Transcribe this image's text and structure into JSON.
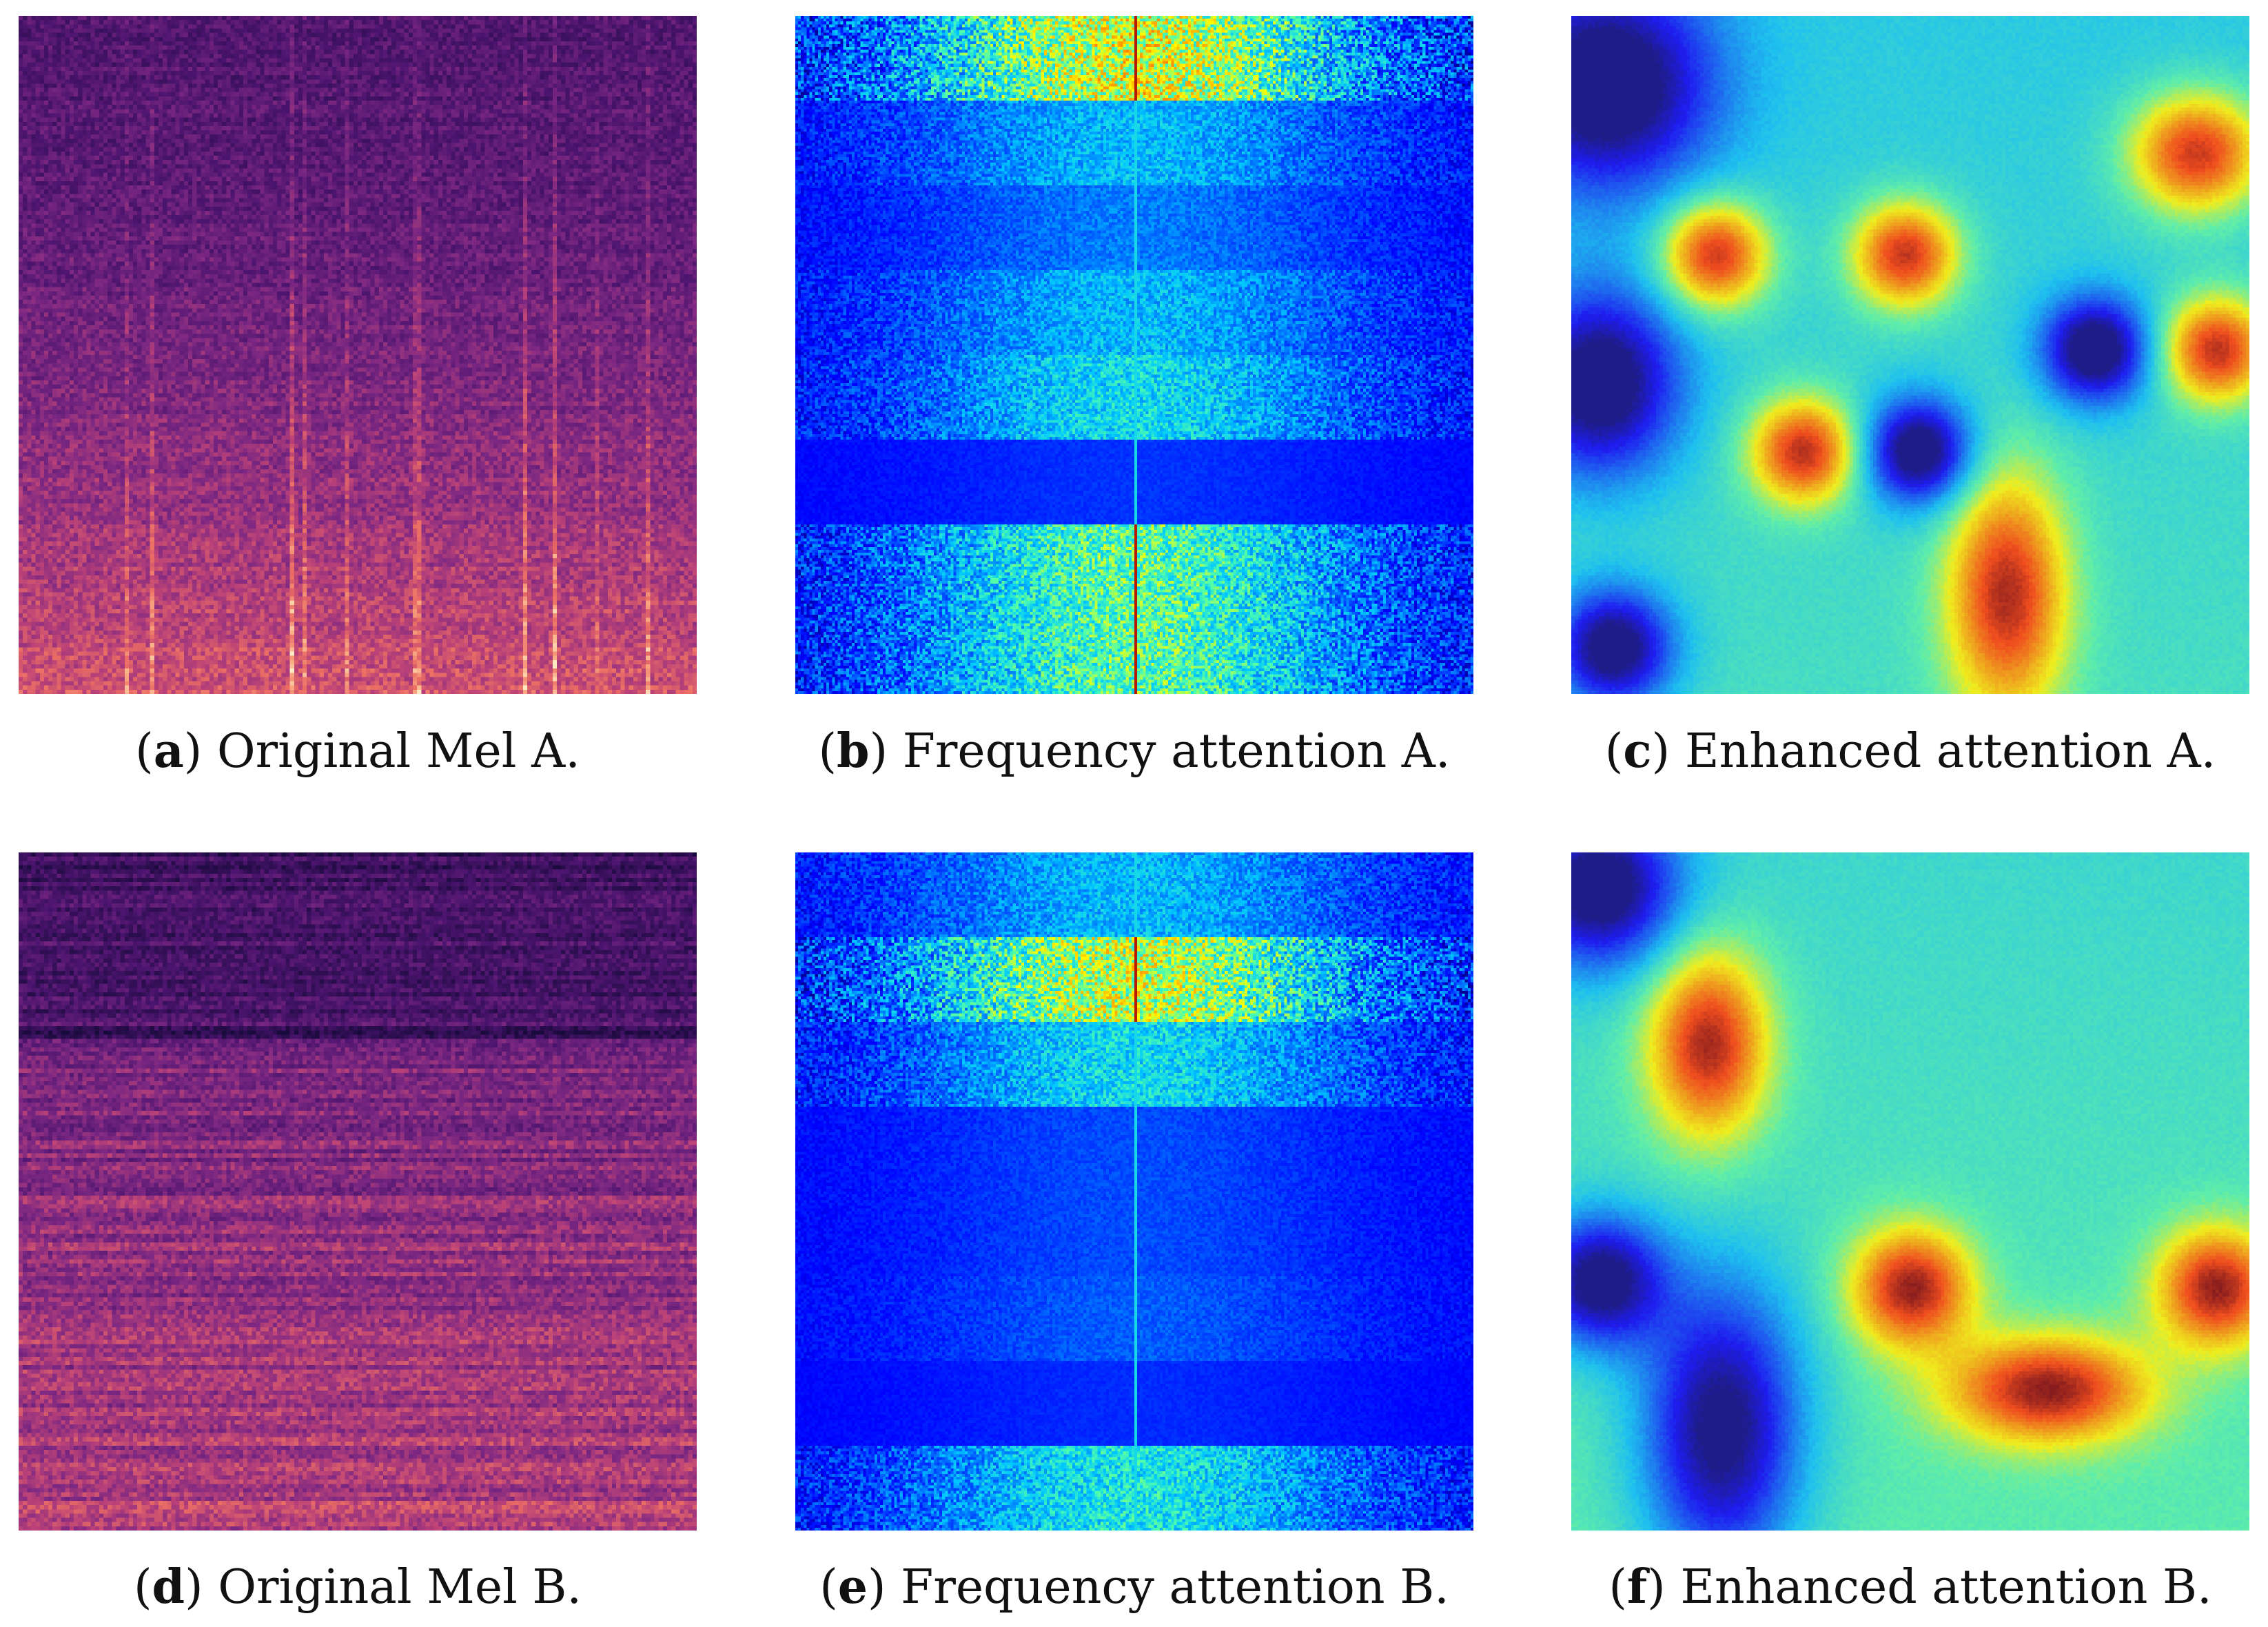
{
  "figures": [
    {
      "id": "a",
      "letter": "a",
      "caption": "Original Mel A.",
      "kind": "mel",
      "variant": "A"
    },
    {
      "id": "b",
      "letter": "b",
      "caption": "Frequency attention A.",
      "kind": "freq",
      "variant": "A"
    },
    {
      "id": "c",
      "letter": "c",
      "caption": "Enhanced attention A.",
      "kind": "enh",
      "variant": "A"
    },
    {
      "id": "d",
      "letter": "d",
      "caption": "Original Mel B.",
      "kind": "mel",
      "variant": "B"
    },
    {
      "id": "e",
      "letter": "e",
      "caption": "Frequency attention B.",
      "kind": "freq",
      "variant": "B"
    },
    {
      "id": "f",
      "letter": "f",
      "caption": "Enhanced attention B.",
      "kind": "enh",
      "variant": "B"
    }
  ],
  "colormaps": {
    "mel": "magma",
    "freq": "jet",
    "enh": "jet-overlay"
  }
}
